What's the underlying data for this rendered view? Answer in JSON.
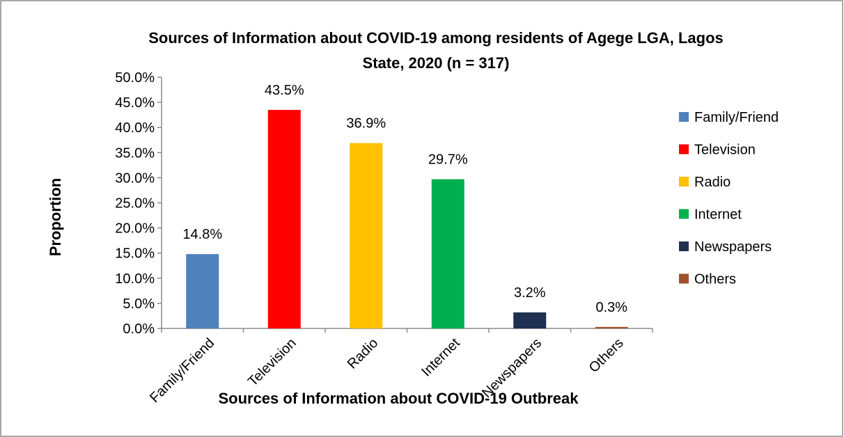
{
  "chart_data": {
    "type": "bar",
    "title_line1": "Sources of Information about COVID-19 among residents of Agege LGA, Lagos",
    "title_line2": "State, 2020 (n = 317)",
    "xlabel": "Sources of Information about COVID-19 Outbreak",
    "ylabel": "Proportion",
    "categories": [
      "Family/Friend",
      "Television",
      "Radio",
      "Internet",
      "Newspapers",
      "Others"
    ],
    "values": [
      14.8,
      43.5,
      36.9,
      29.7,
      3.2,
      0.3
    ],
    "data_labels": [
      "14.8%",
      "43.5%",
      "36.9%",
      "29.7%",
      "3.2%",
      "0.3%"
    ],
    "colors": [
      "#4F81BD",
      "#FF0000",
      "#FFC000",
      "#00B050",
      "#1F3050",
      "#A0522D"
    ],
    "ylim": [
      0,
      50
    ],
    "yticks": [
      "0.0%",
      "5.0%",
      "10.0%",
      "15.0%",
      "20.0%",
      "25.0%",
      "30.0%",
      "35.0%",
      "40.0%",
      "45.0%",
      "50.0%"
    ],
    "grid": false,
    "legend_position": "right",
    "legend": [
      "Family/Friend",
      "Television",
      "Radio",
      "Internet",
      "Newspapers",
      "Others"
    ]
  }
}
